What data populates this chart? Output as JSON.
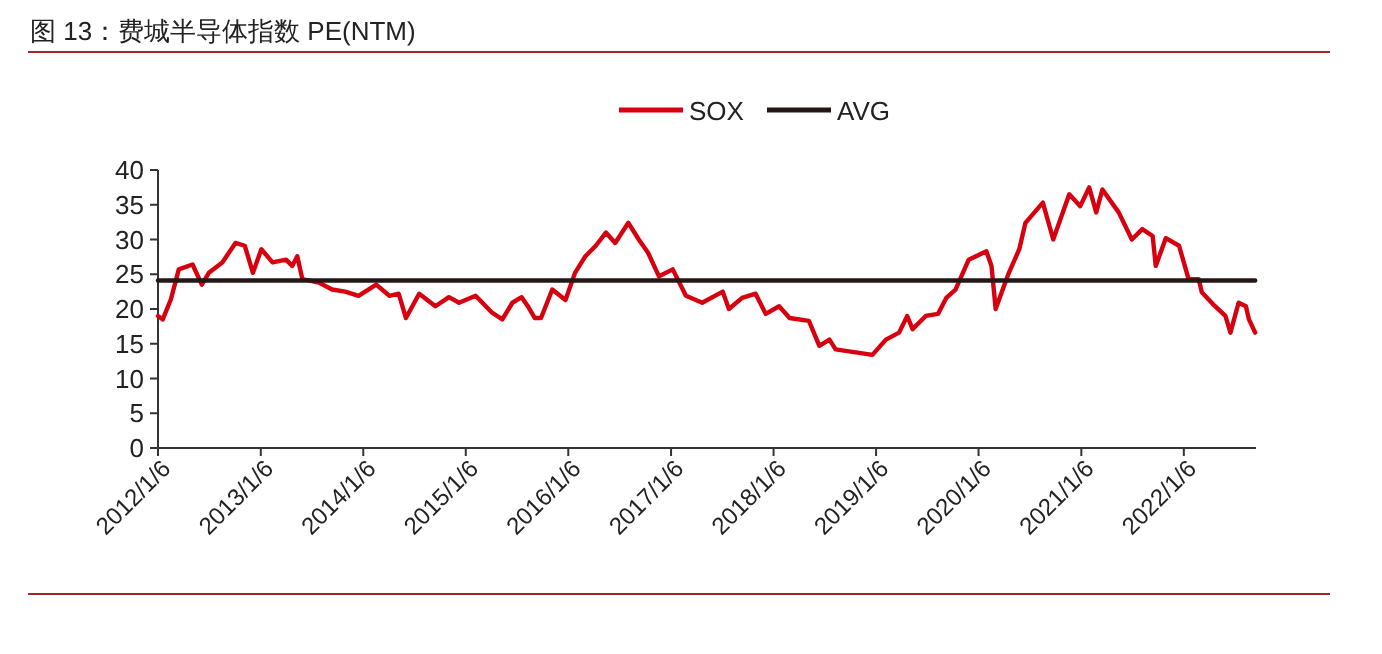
{
  "chart_data": {
    "type": "line",
    "title": "图 13：费城半导体指数 PE(NTM)",
    "legend": "top",
    "grid": false,
    "marker": "none",
    "line_style": "solid",
    "xlim": [
      "2012-01-06",
      "2022-09-20"
    ],
    "xticks": [
      {
        "value": "2012-01-06",
        "label": "2012/1/6"
      },
      {
        "value": "2013-01-06",
        "label": "2013/1/6"
      },
      {
        "value": "2014-01-06",
        "label": "2014/1/6"
      },
      {
        "value": "2015-01-06",
        "label": "2015/1/6"
      },
      {
        "value": "2016-01-06",
        "label": "2016/1/6"
      },
      {
        "value": "2017-01-06",
        "label": "2017/1/6"
      },
      {
        "value": "2018-01-06",
        "label": "2018/1/6"
      },
      {
        "value": "2019-01-06",
        "label": "2019/1/6"
      },
      {
        "value": "2020-01-06",
        "label": "2020/1/6"
      },
      {
        "value": "2021-01-06",
        "label": "2021/1/6"
      },
      {
        "value": "2022-01-06",
        "label": "2022/1/6"
      }
    ],
    "ylim": [
      0,
      40
    ],
    "yticks": [
      0,
      5,
      10,
      15,
      20,
      25,
      30,
      35,
      40
    ],
    "series": [
      {
        "name": "SOX",
        "color": "#d7000f",
        "x": [
          "2012-01-06",
          "2012-01-23",
          "2012-02-21",
          "2012-03-20",
          "2012-05-08",
          "2012-06-10",
          "2012-07-05",
          "2012-08-22",
          "2012-10-08",
          "2012-11-10",
          "2012-12-09",
          "2013-01-08",
          "2013-02-17",
          "2013-04-06",
          "2013-04-28",
          "2013-05-16",
          "2013-06-03",
          "2013-08-01",
          "2013-09-17",
          "2013-11-03",
          "2013-12-20",
          "2014-02-21",
          "2014-04-09",
          "2014-05-12",
          "2014-06-07",
          "2014-07-24",
          "2014-09-20",
          "2014-11-07",
          "2014-12-13",
          "2015-02-10",
          "2015-04-09",
          "2015-05-16",
          "2015-06-21",
          "2015-07-24",
          "2015-08-15",
          "2015-09-09",
          "2015-10-01",
          "2015-11-10",
          "2015-12-27",
          "2016-01-30",
          "2016-03-07",
          "2016-04-13",
          "2016-05-19",
          "2016-06-21",
          "2016-08-07",
          "2016-09-13",
          "2016-10-16",
          "2016-11-24",
          "2017-01-12",
          "2017-02-28",
          "2017-04-27",
          "2017-07-09",
          "2017-07-31",
          "2017-09-16",
          "2017-11-03",
          "2017-12-09",
          "2018-01-26",
          "2018-03-04",
          "2018-05-12",
          "2018-06-18",
          "2018-07-24",
          "2018-08-15",
          "2018-12-24",
          "2019-02-10",
          "2019-03-29",
          "2019-04-27",
          "2019-05-16",
          "2019-07-02",
          "2019-08-15",
          "2019-09-13",
          "2019-10-16",
          "2019-12-02",
          "2020-02-03",
          "2020-02-21",
          "2020-03-07",
          "2020-04-01",
          "2020-04-23",
          "2020-05-30",
          "2020-06-21",
          "2020-08-22",
          "2020-09-28",
          "2020-10-19",
          "2020-11-24",
          "2021-01-02",
          "2021-02-03",
          "2021-02-28",
          "2021-03-22",
          "2021-05-19",
          "2021-07-05",
          "2021-08-11",
          "2021-09-17",
          "2021-09-28",
          "2021-11-03",
          "2021-12-20",
          "2022-01-23",
          "2022-02-28",
          "2022-03-11",
          "2022-04-27",
          "2022-06-03",
          "2022-06-21",
          "2022-07-20",
          "2022-08-15",
          "2022-08-26",
          "2022-09-17"
        ],
        "values": [
          19.0,
          18.5,
          21.4,
          25.7,
          26.4,
          23.5,
          25.2,
          26.7,
          29.5,
          29.1,
          25.2,
          28.6,
          26.7,
          27.1,
          26.2,
          27.6,
          24.3,
          23.8,
          22.8,
          22.5,
          21.9,
          23.5,
          21.9,
          22.2,
          18.7,
          22.2,
          20.4,
          21.7,
          20.9,
          21.9,
          19.5,
          18.5,
          20.9,
          21.7,
          20.4,
          18.7,
          18.7,
          22.8,
          21.3,
          25.2,
          27.6,
          29.1,
          31.0,
          29.5,
          32.4,
          30.0,
          28.1,
          24.7,
          25.7,
          21.9,
          20.9,
          22.5,
          20.0,
          21.6,
          22.2,
          19.3,
          20.4,
          18.7,
          18.3,
          14.7,
          15.6,
          14.2,
          13.4,
          15.6,
          16.6,
          19.0,
          17.1,
          19.0,
          19.3,
          21.6,
          22.8,
          27.1,
          28.3,
          26.2,
          20.0,
          22.8,
          25.2,
          28.6,
          32.4,
          35.3,
          30.0,
          32.4,
          36.5,
          34.8,
          37.5,
          33.9,
          37.2,
          33.9,
          30.0,
          31.5,
          30.5,
          26.2,
          30.2,
          29.1,
          24.3,
          24.3,
          22.4,
          20.4,
          19.0,
          16.6,
          20.9,
          20.4,
          18.5,
          16.6
        ]
      },
      {
        "name": "AVG",
        "color": "#231815",
        "x": [
          "2012-01-06",
          "2022-09-17"
        ],
        "values": [
          24.1,
          24.1
        ]
      }
    ]
  }
}
